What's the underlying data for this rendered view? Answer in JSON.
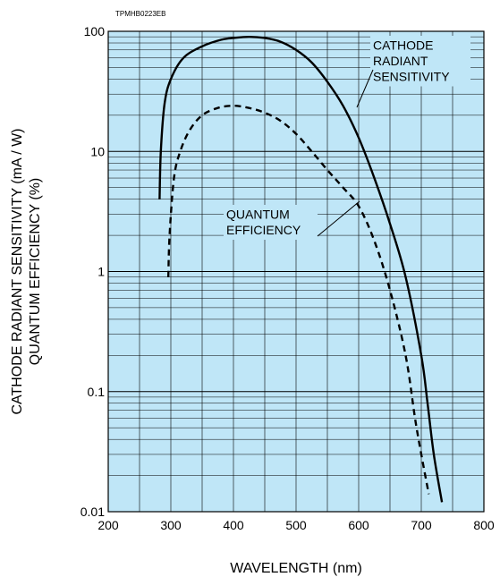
{
  "chart_data": {
    "type": "line",
    "figure_code": "TPMHB0223EB",
    "xlabel": "WAVELENGTH (nm)",
    "ylabel_lines": [
      "CATHODE RADIANT SENSITIVITY (mA / W)",
      "QUANTUM EFFICIENCY (%)"
    ],
    "xlim": [
      200,
      800
    ],
    "ylim": [
      0.01,
      100
    ],
    "yscale": "log",
    "x_ticks": [
      200,
      300,
      400,
      500,
      600,
      700,
      800
    ],
    "x_tick_labels": [
      "200",
      "300",
      "400",
      "500",
      "600",
      "700",
      "800"
    ],
    "y_ticks": [
      0.01,
      0.1,
      1,
      10,
      100
    ],
    "y_tick_labels": [
      "0.01",
      "0.1",
      "1",
      "10",
      "100"
    ],
    "grid": true,
    "background_color": "#bfe6f7",
    "grid_color": "#000000",
    "series": [
      {
        "name": "CATHODE RADIANT SENSITIVITY",
        "name_lines": [
          "CATHODE",
          "RADIANT",
          "SENSITIVITY"
        ],
        "style": "solid",
        "color": "#000000",
        "x": [
          282,
          284,
          290,
          300,
          320,
          350,
          380,
          400,
          425,
          450,
          475,
          500,
          525,
          550,
          575,
          600,
          625,
          650,
          675,
          700,
          710,
          720,
          733
        ],
        "y": [
          4.0,
          10.0,
          25.0,
          40.0,
          60.0,
          75.0,
          85.0,
          88.0,
          90.0,
          88.0,
          82.0,
          70.0,
          55.0,
          38.0,
          24.0,
          13.0,
          6.0,
          2.5,
          0.9,
          0.2,
          0.08,
          0.03,
          0.012
        ]
      },
      {
        "name": "QUANTUM EFFICIENCY",
        "name_lines": [
          "QUANTUM",
          "EFFICIENCY"
        ],
        "style": "dashed",
        "color": "#000000",
        "x": [
          296,
          298,
          305,
          315,
          330,
          350,
          375,
          400,
          425,
          450,
          475,
          500,
          525,
          550,
          575,
          600,
          625,
          650,
          675,
          690,
          700,
          712
        ],
        "y": [
          0.9,
          2.0,
          6.0,
          10.0,
          15.0,
          20.0,
          23.0,
          24.0,
          23.0,
          21.0,
          18.0,
          14.0,
          10.0,
          7.0,
          5.0,
          3.5,
          1.8,
          0.7,
          0.2,
          0.06,
          0.03,
          0.014
        ]
      }
    ]
  }
}
